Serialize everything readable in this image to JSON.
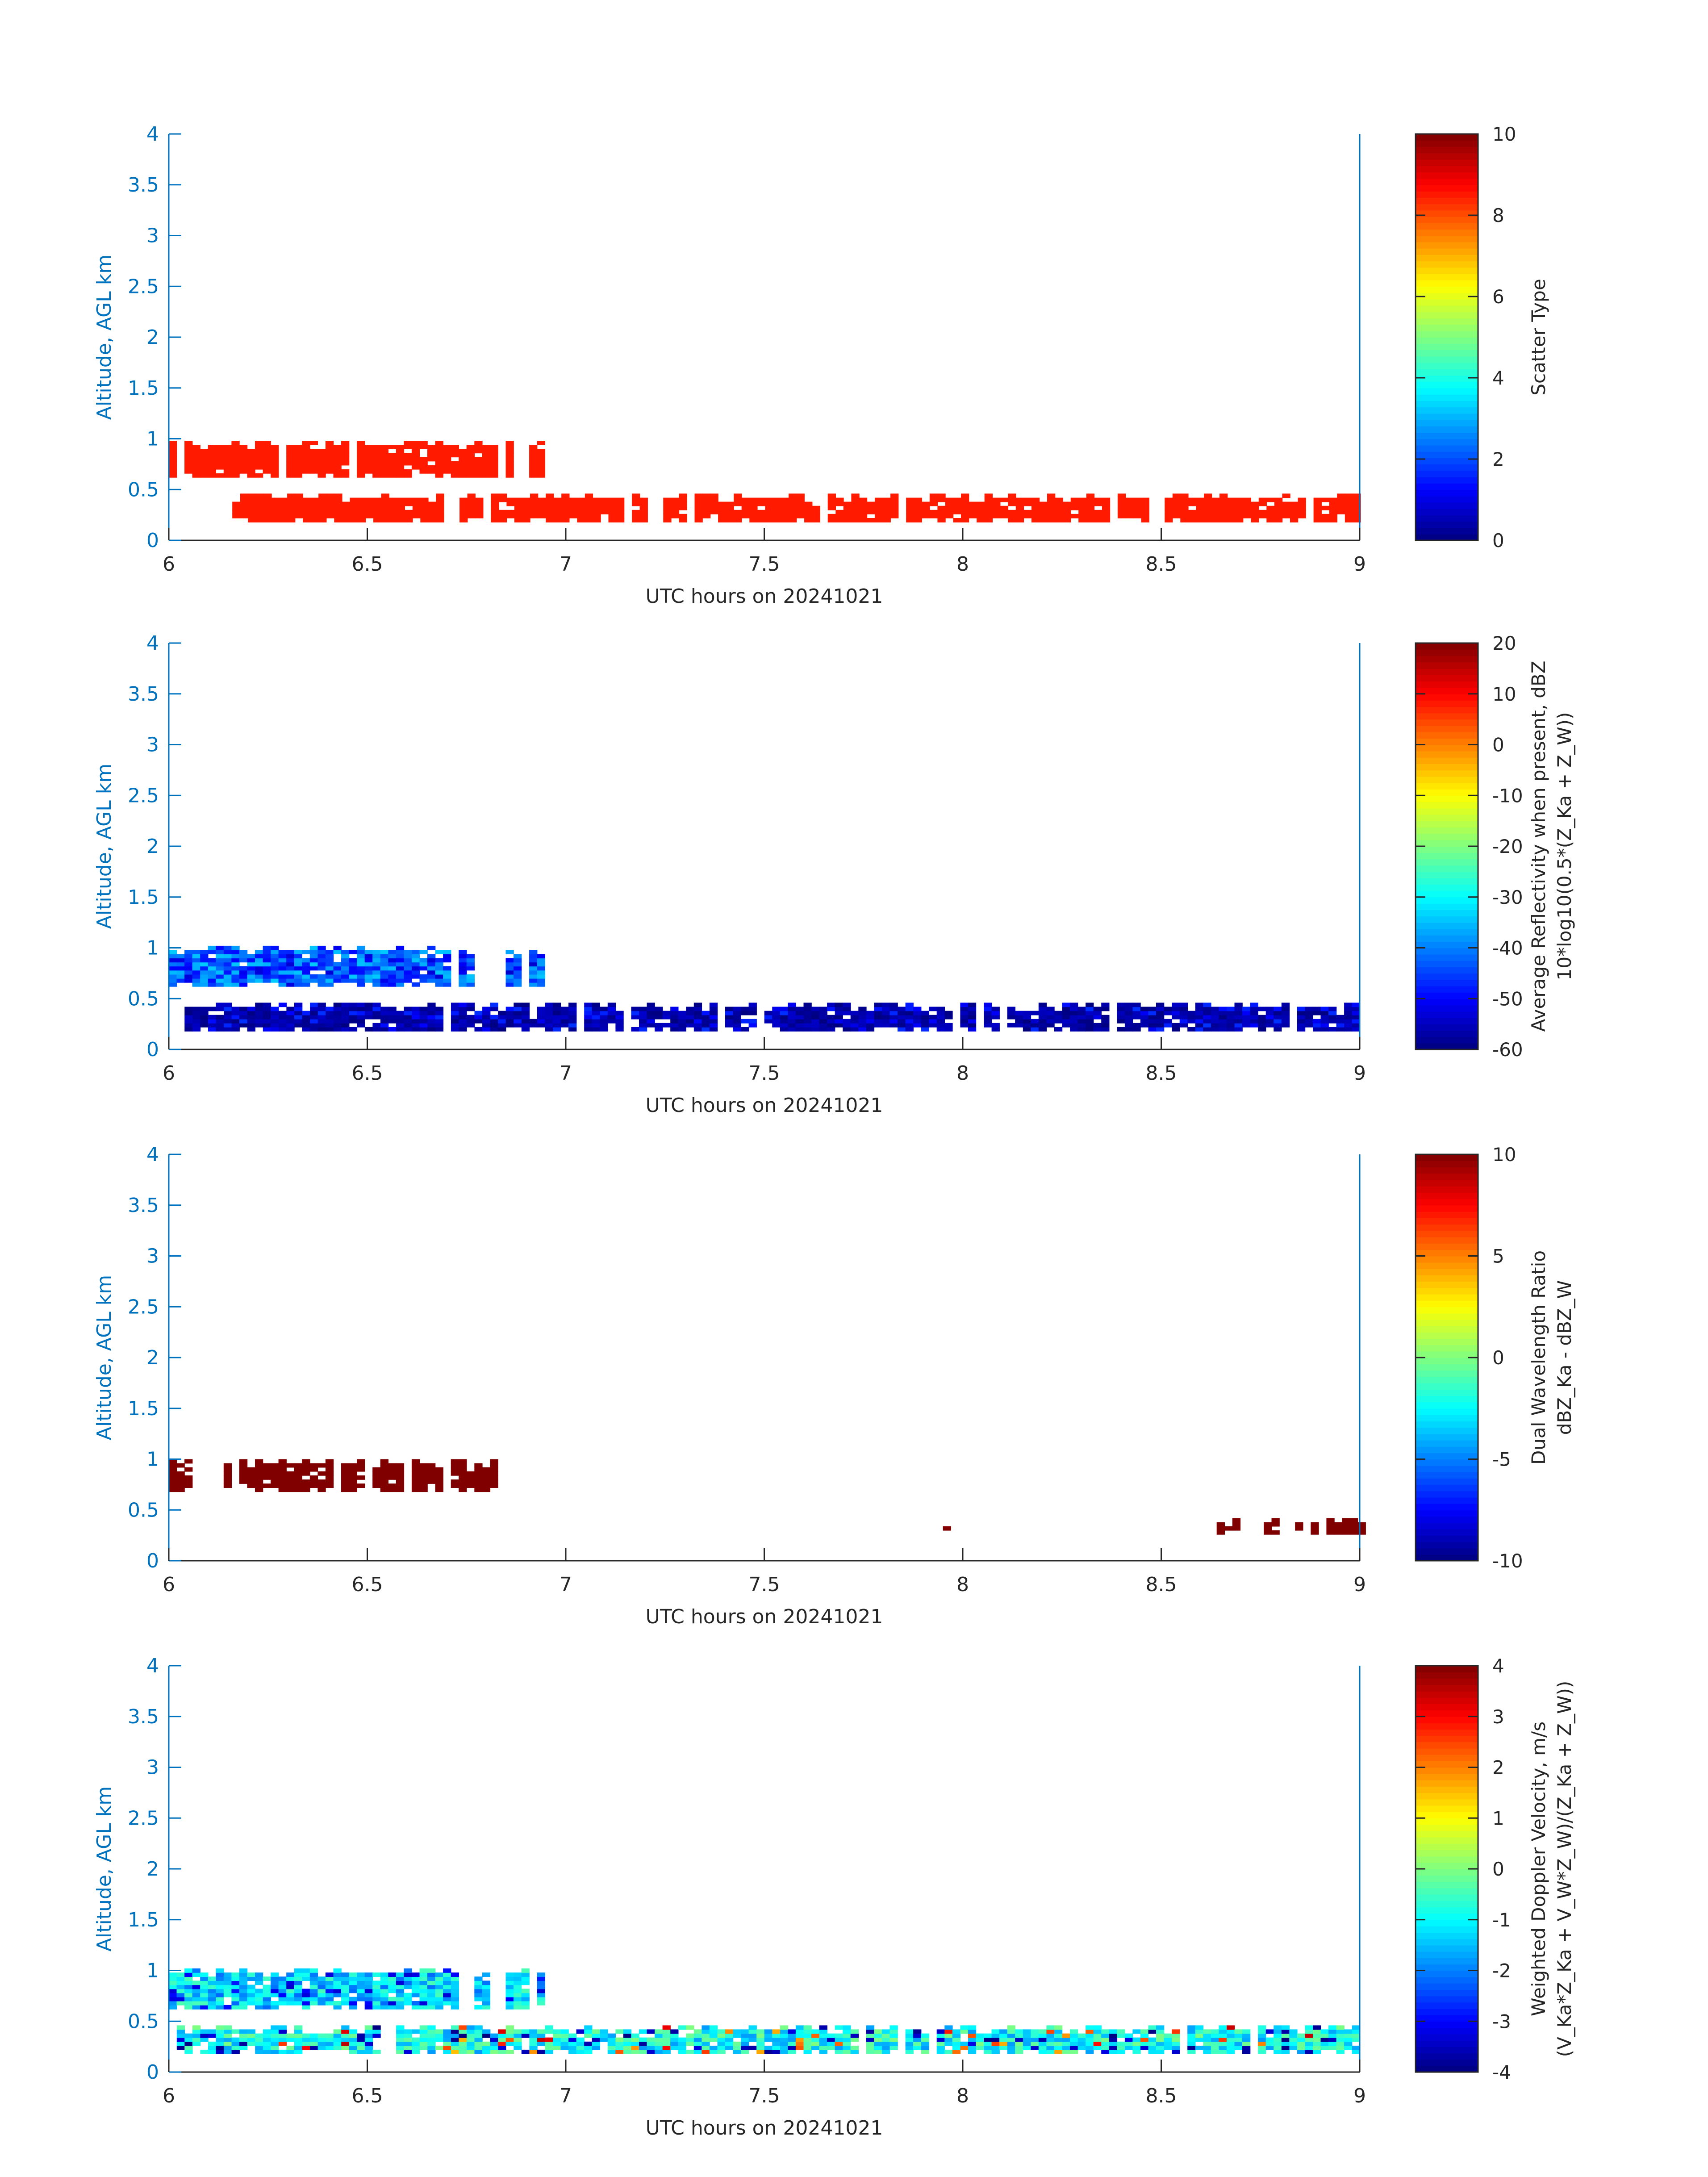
{
  "chart_data": [
    {
      "type": "heatmap",
      "xlabel": "UTC hours on 20241021",
      "ylabel": "Altitude, AGL km",
      "xlim": [
        6,
        9
      ],
      "ylim": [
        0,
        4
      ],
      "xticks": [
        "6",
        "6.5",
        "7",
        "7.5",
        "8",
        "8.5",
        "9"
      ],
      "yticks": [
        "0",
        "0.5",
        "1",
        "1.5",
        "2",
        "2.5",
        "3",
        "3.5",
        "4"
      ],
      "colorbar": {
        "label_lines": [
          "Scatter Type"
        ],
        "range": [
          0,
          10
        ],
        "ticks": [
          "0",
          "2",
          "4",
          "6",
          "8",
          "10"
        ],
        "colormap": "jet"
      },
      "field": "scatter",
      "layers": [
        {
          "x": [
            6.0,
            6.94
          ],
          "y": [
            0.62,
            0.98
          ],
          "value": 8.5
        },
        {
          "x": [
            6.16,
            9.0
          ],
          "y": [
            0.18,
            0.46
          ],
          "value": 8.5
        }
      ]
    },
    {
      "type": "heatmap",
      "xlabel": "UTC hours on 20241021",
      "ylabel": "Altitude, AGL km",
      "xlim": [
        6,
        9
      ],
      "ylim": [
        0,
        4
      ],
      "xticks": [
        "6",
        "6.5",
        "7",
        "7.5",
        "8",
        "8.5",
        "9"
      ],
      "yticks": [
        "0",
        "0.5",
        "1",
        "1.5",
        "2",
        "2.5",
        "3",
        "3.5",
        "4"
      ],
      "colorbar": {
        "label_lines": [
          "Average Reflectivity when present, dBZ",
          "10*log10(0.5*(Z_Ka + Z_W))"
        ],
        "range": [
          -60,
          20
        ],
        "ticks": [
          "-60",
          "-50",
          "-40",
          "-30",
          "-20",
          "-10",
          "0",
          "10",
          "20"
        ],
        "colormap": "jet"
      },
      "field": "reflectivity",
      "layers": [
        {
          "x": [
            6.0,
            6.94
          ],
          "y": [
            0.62,
            1.02
          ],
          "value_range": [
            -50,
            -34
          ]
        },
        {
          "x": [
            6.02,
            9.0
          ],
          "y": [
            0.18,
            0.46
          ],
          "value_range": [
            -58,
            -48
          ]
        }
      ]
    },
    {
      "type": "heatmap",
      "xlabel": "UTC hours on 20241021",
      "ylabel": "Altitude, AGL km",
      "xlim": [
        6,
        9
      ],
      "ylim": [
        0,
        4
      ],
      "xticks": [
        "6",
        "6.5",
        "7",
        "7.5",
        "8",
        "8.5",
        "9"
      ],
      "yticks": [
        "0",
        "0.5",
        "1",
        "1.5",
        "2",
        "2.5",
        "3",
        "3.5",
        "4"
      ],
      "colorbar": {
        "label_lines": [
          "Dual Wavelength Ratio",
          "dBZ_Ka - dBZ_W"
        ],
        "range": [
          -10,
          10
        ],
        "ticks": [
          "-10",
          "-5",
          "0",
          "5",
          "10"
        ],
        "colormap": "jet"
      },
      "field": "dwr",
      "layers": [
        {
          "x": [
            6.0,
            6.84
          ],
          "y": [
            0.68,
            0.98
          ],
          "value": 10
        },
        {
          "x": [
            8.62,
            9.0
          ],
          "y": [
            0.26,
            0.42
          ],
          "value": 10
        },
        {
          "x": [
            7.95,
            7.96
          ],
          "y": [
            0.3,
            0.34
          ],
          "value": 10
        }
      ]
    },
    {
      "type": "heatmap",
      "xlabel": "UTC hours on 20241021",
      "ylabel": "Altitude, AGL km",
      "xlim": [
        6,
        9
      ],
      "ylim": [
        0,
        4
      ],
      "xticks": [
        "6",
        "6.5",
        "7",
        "7.5",
        "8",
        "8.5",
        "9"
      ],
      "yticks": [
        "0",
        "0.5",
        "1",
        "1.5",
        "2",
        "2.5",
        "3",
        "3.5",
        "4"
      ],
      "colorbar": {
        "label_lines": [
          "Weighted Doppler Velocity, m/s",
          "(V_Ka*Z_Ka + V_W*Z_W)/(Z_Ka + Z_W))"
        ],
        "range": [
          -4,
          4
        ],
        "ticks": [
          "-4",
          "-3",
          "-2",
          "-1",
          "0",
          "1",
          "2",
          "3",
          "4"
        ],
        "colormap": "jet"
      },
      "field": "velocity",
      "layers": [
        {
          "x": [
            6.0,
            6.94
          ],
          "y": [
            0.62,
            1.02
          ],
          "value_range": [
            -2.5,
            -0.5
          ]
        },
        {
          "x": [
            6.02,
            9.0
          ],
          "y": [
            0.18,
            0.46
          ],
          "value_range": [
            -3.5,
            0.5
          ]
        }
      ]
    }
  ]
}
